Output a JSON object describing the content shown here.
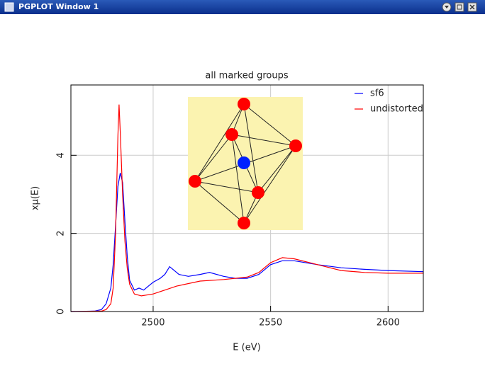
{
  "window": {
    "title": "PGPLOT Window 1"
  },
  "chart_data": {
    "type": "line",
    "title": "all marked groups",
    "x_label": "E (eV)",
    "y_label": "xμ(E)",
    "xlim": [
      2465,
      2615
    ],
    "xticks": [
      2500,
      2550,
      2600
    ],
    "ylim": [
      0,
      5.8
    ],
    "yticks": [
      0,
      2,
      4
    ],
    "grid": true,
    "legend": "top-right",
    "series": [
      {
        "name": "sf6",
        "color": "#0000ff",
        "x": [
          2465,
          2475,
          2478,
          2480,
          2482,
          2483,
          2484,
          2485,
          2486,
          2487,
          2488,
          2489,
          2490,
          2492,
          2494,
          2496,
          2498,
          2500,
          2503,
          2505,
          2507,
          2509,
          2511,
          2515,
          2520,
          2524,
          2530,
          2535,
          2540,
          2545,
          2550,
          2555,
          2560,
          2570,
          2580,
          2590,
          2600,
          2615
        ],
        "values": [
          0,
          0.01,
          0.05,
          0.2,
          0.6,
          1.2,
          2.2,
          3.2,
          3.55,
          3.3,
          2.3,
          1.4,
          0.8,
          0.55,
          0.6,
          0.55,
          0.65,
          0.75,
          0.85,
          0.95,
          1.15,
          1.05,
          0.95,
          0.9,
          0.95,
          1.0,
          0.9,
          0.85,
          0.85,
          0.95,
          1.2,
          1.3,
          1.3,
          1.2,
          1.12,
          1.08,
          1.05,
          1.02
        ]
      },
      {
        "name": "undistorted",
        "color": "#ff0000",
        "x": [
          2465,
          2478,
          2480,
          2482,
          2483,
          2484,
          2485,
          2485.5,
          2486,
          2487,
          2488,
          2489,
          2490,
          2492,
          2495,
          2500,
          2505,
          2510,
          2520,
          2530,
          2540,
          2545,
          2550,
          2555,
          2560,
          2570,
          2580,
          2590,
          2600,
          2615
        ],
        "values": [
          0,
          0.01,
          0.05,
          0.2,
          0.6,
          2.0,
          4.5,
          5.3,
          4.6,
          3.0,
          1.8,
          1.1,
          0.7,
          0.45,
          0.4,
          0.45,
          0.55,
          0.65,
          0.78,
          0.82,
          0.88,
          1.0,
          1.25,
          1.38,
          1.35,
          1.2,
          1.05,
          1.0,
          0.98,
          0.98
        ]
      }
    ]
  }
}
